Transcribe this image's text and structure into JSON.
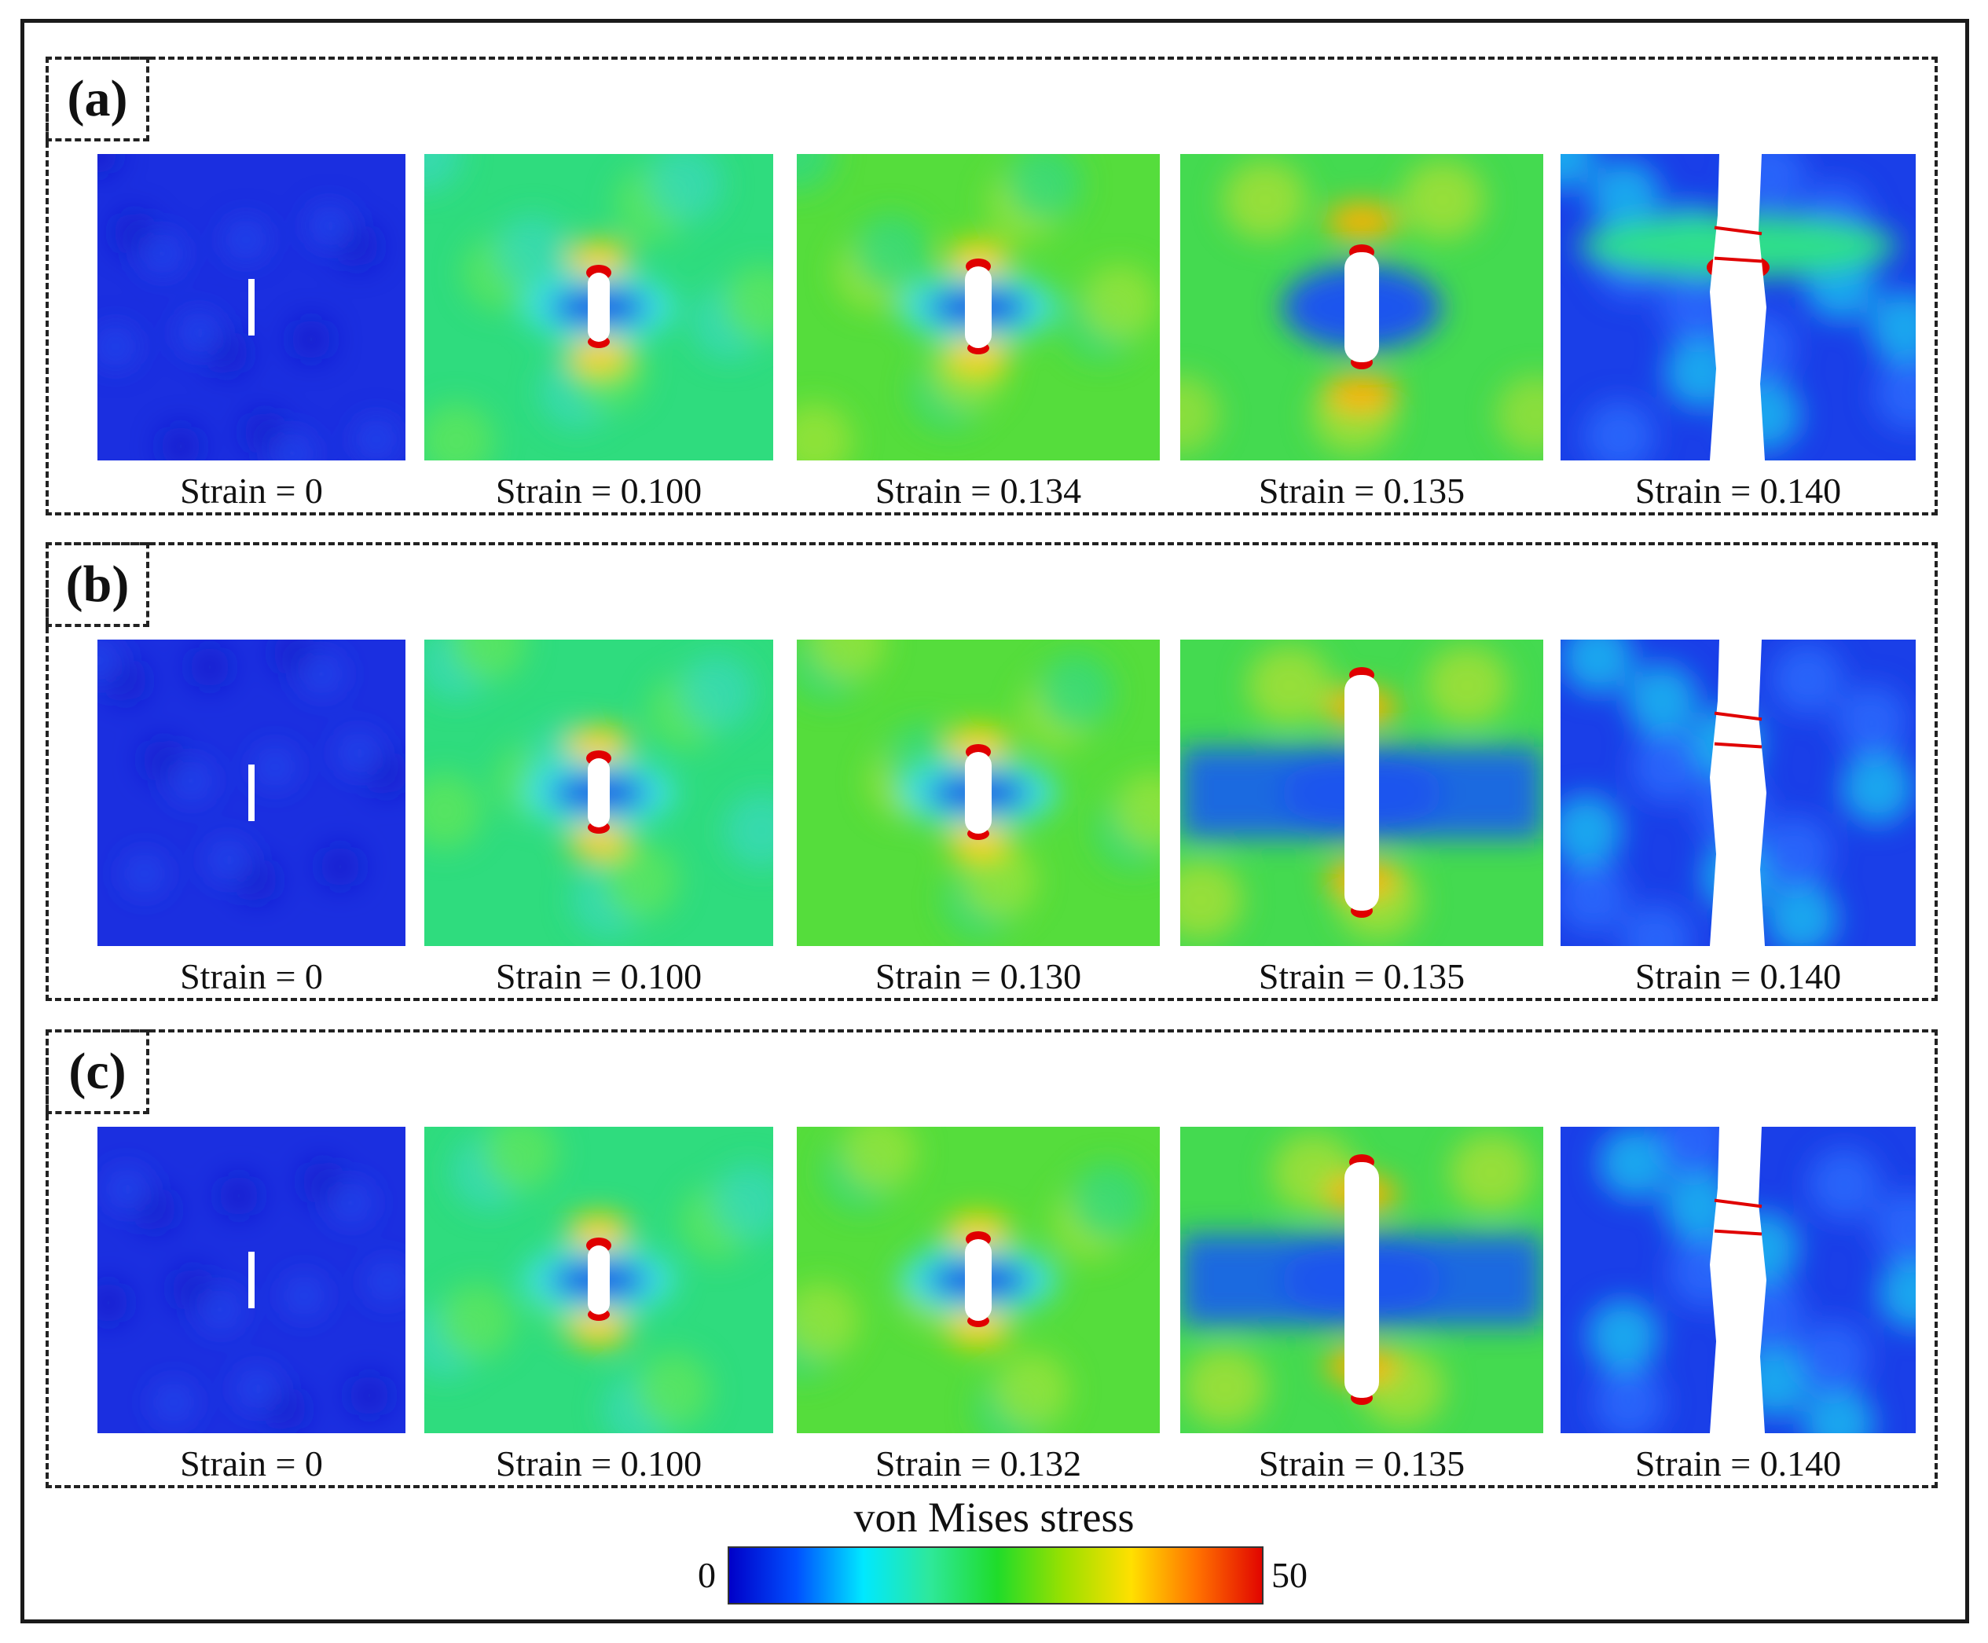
{
  "panels": [
    {
      "label": "(a)",
      "images": [
        {
          "caption": "Strain = 0",
          "stage": 0
        },
        {
          "caption": "Strain = 0.100",
          "stage": 1
        },
        {
          "caption": "Strain = 0.134",
          "stage": 2
        },
        {
          "caption": "Strain = 0.135",
          "stage": 3
        },
        {
          "caption": "Strain = 0.140",
          "stage": 4
        }
      ]
    },
    {
      "label": "(b)",
      "images": [
        {
          "caption": "Strain = 0",
          "stage": 0
        },
        {
          "caption": "Strain = 0.100",
          "stage": 1
        },
        {
          "caption": "Strain = 0.130",
          "stage": 2
        },
        {
          "caption": "Strain = 0.135",
          "stage": 3
        },
        {
          "caption": "Strain = 0.140",
          "stage": 4
        }
      ]
    },
    {
      "label": "(c)",
      "images": [
        {
          "caption": "Strain = 0",
          "stage": 0
        },
        {
          "caption": "Strain = 0.100",
          "stage": 1
        },
        {
          "caption": "Strain = 0.132",
          "stage": 2
        },
        {
          "caption": "Strain = 0.135",
          "stage": 3
        },
        {
          "caption": "Strain = 0.140",
          "stage": 4
        }
      ]
    }
  ],
  "legend": {
    "title": "von Mises stress",
    "min_label": "0",
    "max_label": "50",
    "colors": [
      "#0000c8",
      "#0050ff",
      "#00e8ff",
      "#2ee89a",
      "#1fdc2a",
      "#9be000",
      "#ffe000",
      "#ff7000",
      "#e00000"
    ]
  }
}
